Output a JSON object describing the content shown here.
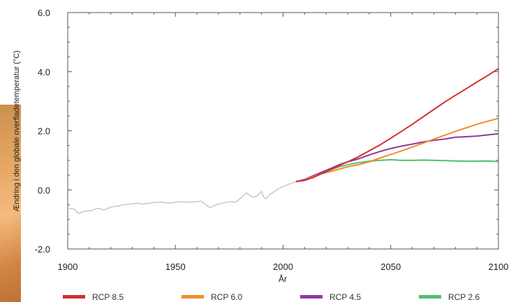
{
  "chart_data": {
    "type": "line",
    "xlabel": "År",
    "ylabel": "Ændring i den globale overfladetemperatur (°C)",
    "xlim": [
      1900,
      2100
    ],
    "ylim": [
      -2.0,
      6.0
    ],
    "xticks": [
      1900,
      1950,
      2000,
      2050,
      2100
    ],
    "xtick_labels": [
      "1900",
      "1950",
      "2000",
      "2050",
      "2100"
    ],
    "yticks": [
      -2.0,
      0.0,
      2.0,
      4.0,
      6.0
    ],
    "ytick_labels": [
      "-2.0",
      "0.0",
      "2.0",
      "4.0",
      "6.0"
    ],
    "grid": false,
    "legend_position": "bottom",
    "historical": {
      "color": "#c8c8c8",
      "x": [
        1900,
        1903,
        1905,
        1908,
        1911,
        1914,
        1917,
        1920,
        1923,
        1926,
        1929,
        1932,
        1935,
        1938,
        1941,
        1944,
        1947,
        1950,
        1953,
        1956,
        1959,
        1962,
        1964,
        1966,
        1969,
        1972,
        1975,
        1978,
        1980,
        1983,
        1986,
        1988,
        1990,
        1991,
        1992,
        1994,
        1997,
        2000,
        2003,
        2006
      ],
      "y": [
        -0.62,
        -0.65,
        -0.8,
        -0.72,
        -0.7,
        -0.62,
        -0.68,
        -0.58,
        -0.55,
        -0.5,
        -0.48,
        -0.45,
        -0.48,
        -0.45,
        -0.42,
        -0.42,
        -0.45,
        -0.42,
        -0.4,
        -0.42,
        -0.4,
        -0.38,
        -0.5,
        -0.6,
        -0.5,
        -0.45,
        -0.4,
        -0.42,
        -0.3,
        -0.1,
        -0.25,
        -0.2,
        -0.05,
        -0.25,
        -0.3,
        -0.15,
        0.0,
        0.12,
        0.2,
        0.28
      ]
    },
    "series": [
      {
        "name": "RCP 8.5",
        "color": "#d32f2f",
        "x": [
          2006,
          2010,
          2014,
          2018,
          2022,
          2026,
          2030,
          2035,
          2040,
          2045,
          2050,
          2055,
          2060,
          2065,
          2070,
          2075,
          2080,
          2085,
          2090,
          2095,
          2100
        ],
        "y": [
          0.28,
          0.32,
          0.42,
          0.55,
          0.68,
          0.82,
          0.95,
          1.12,
          1.32,
          1.52,
          1.75,
          1.98,
          2.22,
          2.47,
          2.72,
          2.97,
          3.2,
          3.42,
          3.65,
          3.87,
          4.1
        ]
      },
      {
        "name": "RCP 6.0",
        "color": "#f28c28",
        "x": [
          2006,
          2010,
          2014,
          2018,
          2022,
          2026,
          2030,
          2035,
          2040,
          2045,
          2050,
          2055,
          2060,
          2065,
          2070,
          2075,
          2080,
          2085,
          2090,
          2095,
          2100
        ],
        "y": [
          0.28,
          0.33,
          0.45,
          0.55,
          0.62,
          0.7,
          0.78,
          0.85,
          0.95,
          1.08,
          1.2,
          1.32,
          1.45,
          1.58,
          1.72,
          1.85,
          1.98,
          2.1,
          2.22,
          2.32,
          2.42
        ]
      },
      {
        "name": "RCP 4.5",
        "color": "#8e3a9c",
        "x": [
          2006,
          2010,
          2014,
          2018,
          2022,
          2026,
          2030,
          2035,
          2040,
          2045,
          2050,
          2055,
          2060,
          2065,
          2070,
          2075,
          2080,
          2085,
          2090,
          2095,
          2100
        ],
        "y": [
          0.28,
          0.35,
          0.48,
          0.6,
          0.72,
          0.85,
          0.95,
          1.05,
          1.18,
          1.3,
          1.4,
          1.48,
          1.55,
          1.62,
          1.68,
          1.72,
          1.78,
          1.8,
          1.82,
          1.86,
          1.9
        ]
      },
      {
        "name": "RCP 2.6",
        "color": "#4fbf6f",
        "x": [
          2006,
          2010,
          2014,
          2018,
          2022,
          2026,
          2030,
          2035,
          2040,
          2045,
          2050,
          2055,
          2060,
          2065,
          2070,
          2075,
          2080,
          2085,
          2090,
          2095,
          2100
        ],
        "y": [
          0.28,
          0.34,
          0.47,
          0.58,
          0.68,
          0.78,
          0.85,
          0.92,
          0.97,
          1.0,
          1.02,
          1.0,
          1.0,
          1.01,
          1.0,
          0.99,
          0.98,
          0.97,
          0.97,
          0.98,
          0.96
        ]
      }
    ]
  }
}
